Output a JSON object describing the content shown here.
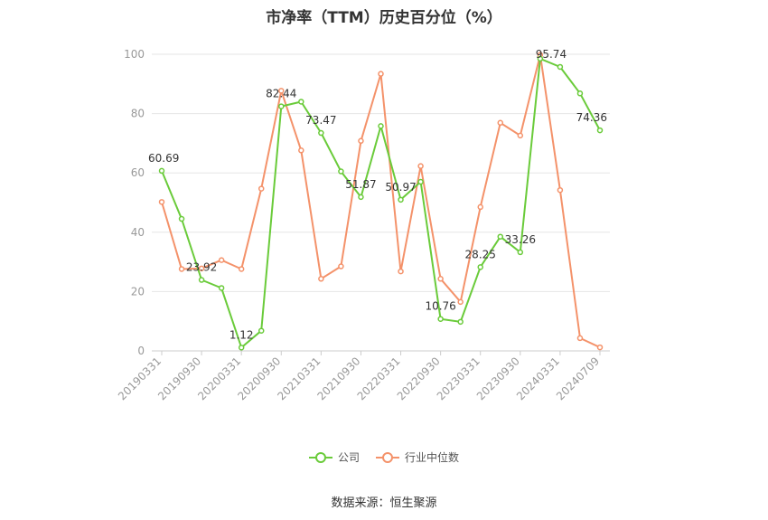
{
  "chart_data": {
    "type": "line",
    "title": "市净率（TTM）历史百分位（%）",
    "source": "数据来源：恒生聚源",
    "ylim": [
      0,
      100
    ],
    "yticks": [
      0,
      20,
      40,
      60,
      80,
      100
    ],
    "x": [
      "20190331",
      "20190630",
      "20190930",
      "20191231",
      "20200331",
      "20200630",
      "20200930",
      "20201231",
      "20210331",
      "20210630",
      "20210930",
      "20211231",
      "20220331",
      "20220630",
      "20220930",
      "20221231",
      "20230331",
      "20230630",
      "20230930",
      "20231231",
      "20240331",
      "20240630",
      "20240709"
    ],
    "xtick_labels": [
      "20190331",
      "20190930",
      "20200331",
      "20200930",
      "20210331",
      "20210930",
      "20220331",
      "20220930",
      "20230331",
      "20230930",
      "20240331",
      "20240709"
    ],
    "grid": true,
    "legend_position": "bottom",
    "series": [
      {
        "name": "公司",
        "color": "#6acb3a",
        "values": [
          60.69,
          44.5,
          23.92,
          21.2,
          1.12,
          6.8,
          82.44,
          84.0,
          73.47,
          60.5,
          51.87,
          75.8,
          50.97,
          57.0,
          10.76,
          9.8,
          28.25,
          38.5,
          33.26,
          98.5,
          95.74,
          86.8,
          74.36
        ],
        "labels": [
          "60.69",
          "",
          "23.92",
          "",
          "1.12",
          "",
          "82.44",
          "",
          "73.47",
          "",
          "51.87",
          "",
          "50.97",
          "",
          "10.76",
          "",
          "28.25",
          "",
          "33.26",
          "",
          "95.74",
          "",
          "74.36"
        ]
      },
      {
        "name": "行业中位数",
        "color": "#f4926a",
        "values": [
          50.2,
          27.6,
          27.8,
          30.6,
          27.6,
          54.7,
          87.7,
          67.6,
          24.3,
          28.5,
          70.8,
          93.4,
          26.8,
          62.3,
          24.3,
          16.5,
          48.5,
          76.9,
          72.6,
          99.8,
          54.2,
          4.3,
          1.2
        ]
      }
    ]
  }
}
